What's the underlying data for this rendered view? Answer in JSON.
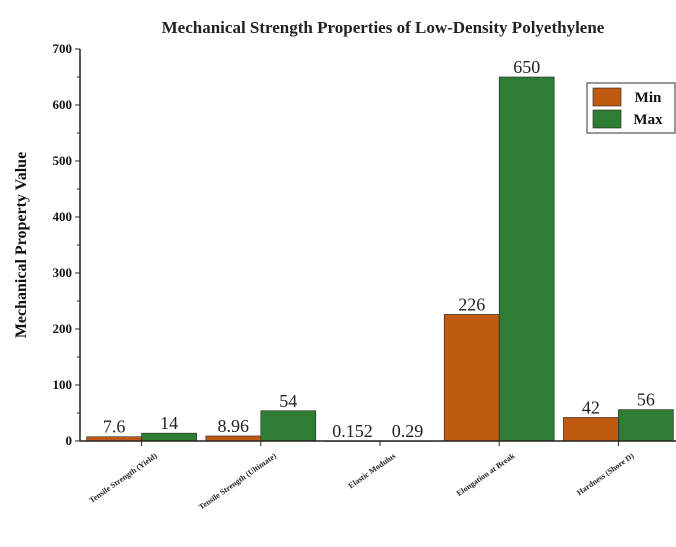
{
  "chart_data": {
    "type": "bar",
    "title": "Mechanical Strength Properties of Low-Density Polyethylene",
    "xlabel": "",
    "ylabel": "Mechanical Property Value",
    "ylim": [
      0,
      700
    ],
    "yticks": [
      0,
      100,
      200,
      300,
      400,
      500,
      600,
      700
    ],
    "grid": false,
    "legend_position": "top-right",
    "categories": [
      "Tensile Strength (Yield)",
      "Tensile Strength (Ultimate)",
      "Elastic Modulus",
      "Elongation at Break",
      "Hardness (Shore D)"
    ],
    "series": [
      {
        "name": "Min",
        "color": "#c05a12",
        "values": [
          7.6,
          8.96,
          0.152,
          226,
          42
        ],
        "labels": [
          "7.6",
          "8.96",
          "0.152",
          "226",
          "42"
        ]
      },
      {
        "name": "Max",
        "color": "#2e7d32",
        "values": [
          14,
          54,
          0.29,
          650,
          56
        ],
        "labels": [
          "14",
          "54",
          "0.29",
          "650",
          "56"
        ]
      }
    ]
  }
}
